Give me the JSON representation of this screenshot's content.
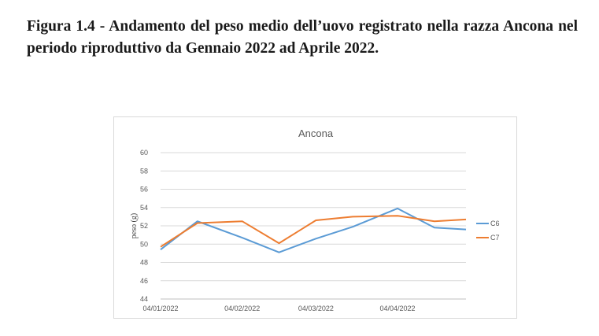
{
  "caption": "Figura 1.4 - Andamento del peso medio dell’uovo registrato nella razza Ancona nel periodo riproduttivo da Gennaio 2022 ad Aprile 2022.",
  "chart_data": {
    "type": "line",
    "title": "Ancona",
    "xlabel": "",
    "ylabel": "peso (g)",
    "ylim": [
      44,
      60
    ],
    "yticks": [
      44,
      46,
      48,
      50,
      52,
      54,
      56,
      58,
      60
    ],
    "x": [
      "04/01/2022",
      "18/01/2022",
      "04/02/2022",
      "18/02/2022",
      "04/03/2022",
      "18/03/2022",
      "04/04/2022",
      "18/04/2022",
      "30/04/2022"
    ],
    "xtick_labels": [
      "04/01/2022",
      "04/02/2022",
      "04/03/2022",
      "04/04/2022"
    ],
    "grid": true,
    "legend_position": "right",
    "series": [
      {
        "name": "C6",
        "color": "#5b9bd5",
        "values": [
          49.4,
          52.5,
          50.7,
          49.1,
          50.6,
          51.9,
          53.9,
          51.8,
          51.6
        ]
      },
      {
        "name": "C7",
        "color": "#ed7d31",
        "values": [
          49.7,
          52.3,
          52.5,
          50.1,
          52.6,
          53.0,
          53.1,
          52.5,
          52.7
        ]
      }
    ]
  }
}
